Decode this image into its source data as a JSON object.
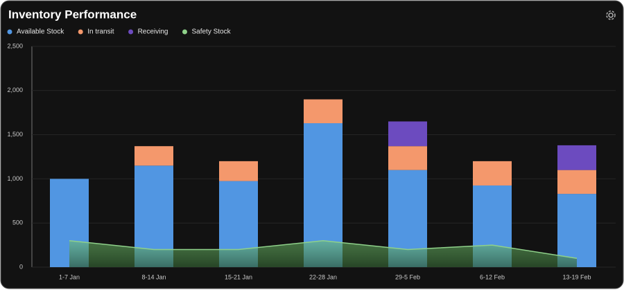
{
  "chart_data": {
    "type": "stacked-bar-line",
    "title": "Inventory Performance",
    "categories": [
      "1-7 Jan",
      "8-14 Jan",
      "15-21 Jan",
      "22-28 Jan",
      "29-5 Feb",
      "6-12 Feb",
      "13-19 Feb"
    ],
    "series": [
      {
        "name": "Available Stock",
        "color": "#5196e2",
        "values": [
          1000,
          1150,
          975,
          1630,
          1100,
          925,
          830
        ]
      },
      {
        "name": "In transit",
        "color": "#f4986c",
        "values": [
          0,
          220,
          225,
          270,
          270,
          275,
          270
        ]
      },
      {
        "name": "Receiving",
        "color": "#6c4bbf",
        "values": [
          0,
          0,
          0,
          0,
          280,
          0,
          280
        ]
      },
      {
        "name": "Safety Stock",
        "color": "#8fd18a",
        "type": "area",
        "values": [
          300,
          200,
          200,
          300,
          200,
          250,
          100
        ]
      }
    ],
    "ylim": [
      0,
      2500
    ],
    "yticks": [
      0,
      500,
      {
        "value": 1000,
        "label": "1,000"
      },
      {
        "value": 1500,
        "label": "1,500"
      },
      {
        "value": 2000,
        "label": "2,000"
      },
      {
        "value": 2500,
        "label": "2,500"
      }
    ],
    "grid": true,
    "legend": "top-left"
  }
}
